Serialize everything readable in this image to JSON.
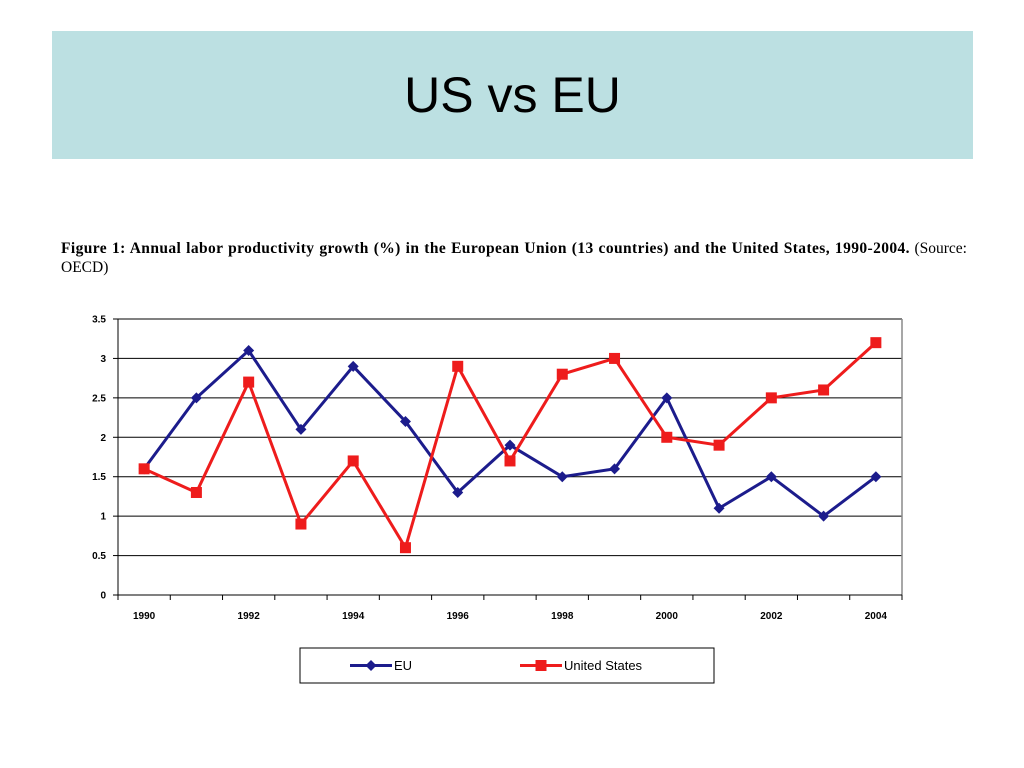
{
  "slide": {
    "title": "US vs EU"
  },
  "caption": {
    "bold": "Figure 1: Annual labor productivity growth (%) in the European Union (13 countries) and the United States, 1990-2004.",
    "normal": "(Source: OECD)"
  },
  "colors": {
    "title_band": "#bce0e2",
    "eu": "#1c1c8c",
    "us": "#ee1c1c"
  },
  "chart_data": {
    "type": "line",
    "title": "",
    "xlabel": "",
    "ylabel": "",
    "x": [
      1990,
      1991,
      1992,
      1993,
      1994,
      1995,
      1996,
      1997,
      1998,
      1999,
      2000,
      2001,
      2002,
      2003,
      2004
    ],
    "x_tick_labels": [
      "1990",
      "1992",
      "1994",
      "1996",
      "1998",
      "2000",
      "2002",
      "2004"
    ],
    "y_tick_labels": [
      "0",
      "0.5",
      "1",
      "1.5",
      "2",
      "2.5",
      "3",
      "3.5"
    ],
    "ylim": [
      0,
      3.5
    ],
    "grid": "horizontal",
    "legend_position": "bottom",
    "series": [
      {
        "name": "EU",
        "marker": "diamond",
        "color": "#1c1c8c",
        "values": [
          1.6,
          2.5,
          3.1,
          2.1,
          2.9,
          2.2,
          1.3,
          1.9,
          1.5,
          1.6,
          2.5,
          1.1,
          1.5,
          1.0,
          1.5
        ]
      },
      {
        "name": "United States",
        "marker": "square",
        "color": "#ee1c1c",
        "values": [
          1.6,
          1.3,
          2.7,
          0.9,
          1.7,
          0.6,
          2.9,
          1.7,
          2.8,
          3.0,
          2.0,
          1.9,
          2.5,
          2.6,
          3.2
        ]
      }
    ]
  }
}
